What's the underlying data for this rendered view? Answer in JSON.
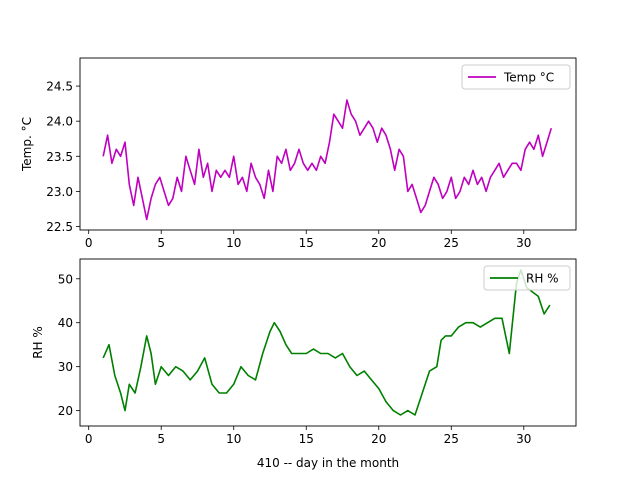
{
  "chart_data": [
    {
      "type": "line",
      "ylabel": "Temp. °C",
      "xlim": [
        -0.6,
        33.6
      ],
      "ylim": [
        22.45,
        24.9
      ],
      "xticks": [
        0,
        5,
        10,
        15,
        20,
        25,
        30
      ],
      "yticks": [
        22.5,
        23.0,
        23.5,
        24.0,
        24.5
      ],
      "ytick_labels": [
        "22.5",
        "23.0",
        "23.5",
        "24.0",
        "24.5"
      ],
      "legend_position": "top-right",
      "series": [
        {
          "name": "Temp °C",
          "color": "#bf00bf",
          "x": [
            1.0,
            1.3,
            1.6,
            1.9,
            2.2,
            2.5,
            2.8,
            3.1,
            3.4,
            3.7,
            4.0,
            4.3,
            4.6,
            4.9,
            5.2,
            5.5,
            5.8,
            6.1,
            6.4,
            6.7,
            7.0,
            7.3,
            7.6,
            7.9,
            8.2,
            8.5,
            8.8,
            9.1,
            9.4,
            9.7,
            10.0,
            10.3,
            10.6,
            10.9,
            11.2,
            11.5,
            11.8,
            12.1,
            12.4,
            12.7,
            13.0,
            13.3,
            13.6,
            13.9,
            14.2,
            14.5,
            14.8,
            15.1,
            15.4,
            15.7,
            16.0,
            16.3,
            16.6,
            16.9,
            17.2,
            17.5,
            17.8,
            18.1,
            18.4,
            18.7,
            19.0,
            19.3,
            19.6,
            19.9,
            20.2,
            20.5,
            20.8,
            21.1,
            21.4,
            21.7,
            22.0,
            22.3,
            22.6,
            22.9,
            23.2,
            23.5,
            23.8,
            24.1,
            24.4,
            24.7,
            25.0,
            25.3,
            25.6,
            25.9,
            26.2,
            26.5,
            26.8,
            27.1,
            27.4,
            27.7,
            28.0,
            28.3,
            28.6,
            28.9,
            29.2,
            29.5,
            29.8,
            30.1,
            30.4,
            30.7,
            31.0,
            31.3,
            31.6,
            31.9
          ],
          "y": [
            23.5,
            23.8,
            23.4,
            23.6,
            23.5,
            23.7,
            23.1,
            22.8,
            23.2,
            22.9,
            22.6,
            22.9,
            23.1,
            23.2,
            23.0,
            22.8,
            22.9,
            23.2,
            23.0,
            23.5,
            23.3,
            23.1,
            23.6,
            23.2,
            23.4,
            23.0,
            23.3,
            23.2,
            23.3,
            23.2,
            23.5,
            23.1,
            23.2,
            23.0,
            23.4,
            23.2,
            23.1,
            22.9,
            23.3,
            23.0,
            23.5,
            23.4,
            23.6,
            23.3,
            23.4,
            23.6,
            23.4,
            23.3,
            23.4,
            23.3,
            23.5,
            23.4,
            23.7,
            24.1,
            24.0,
            23.9,
            24.3,
            24.1,
            24.0,
            23.8,
            23.9,
            24.0,
            23.9,
            23.7,
            23.9,
            23.8,
            23.6,
            23.3,
            23.6,
            23.5,
            23.0,
            23.1,
            22.9,
            22.7,
            22.8,
            23.0,
            23.2,
            23.1,
            22.9,
            23.0,
            23.2,
            22.9,
            23.0,
            23.2,
            23.1,
            23.3,
            23.1,
            23.2,
            23.0,
            23.2,
            23.3,
            23.4,
            23.2,
            23.3,
            23.4,
            23.4,
            23.3,
            23.6,
            23.7,
            23.6,
            23.8,
            23.5,
            23.7,
            23.9
          ]
        }
      ]
    },
    {
      "type": "line",
      "xlabel": "410 -- day in the month",
      "ylabel": "RH %",
      "xlim": [
        -0.6,
        33.6
      ],
      "ylim": [
        16.5,
        54.5
      ],
      "xticks": [
        0,
        5,
        10,
        15,
        20,
        25,
        30
      ],
      "yticks": [
        20,
        30,
        40,
        50
      ],
      "legend_position": "top-right",
      "series": [
        {
          "name": "RH %",
          "color": "#008000",
          "x": [
            1.0,
            1.4,
            1.8,
            2.2,
            2.5,
            2.8,
            3.2,
            3.6,
            4.0,
            4.3,
            4.6,
            5.0,
            5.5,
            6.0,
            6.5,
            7.0,
            7.5,
            8.0,
            8.5,
            9.0,
            9.5,
            10.0,
            10.5,
            11.0,
            11.5,
            12.0,
            12.5,
            12.8,
            13.2,
            13.6,
            14.0,
            14.5,
            15.0,
            15.5,
            16.0,
            16.5,
            17.0,
            17.5,
            18.0,
            18.5,
            19.0,
            19.5,
            20.0,
            20.5,
            21.0,
            21.5,
            22.0,
            22.5,
            23.0,
            23.5,
            24.0,
            24.3,
            24.6,
            25.0,
            25.5,
            26.0,
            26.5,
            27.0,
            27.5,
            28.0,
            28.5,
            29.0,
            29.5,
            29.8,
            30.2,
            30.6,
            31.0,
            31.4,
            31.8
          ],
          "y": [
            32,
            35,
            28,
            24,
            20,
            26,
            24,
            30,
            37,
            33,
            26,
            30,
            28,
            30,
            29,
            27,
            29,
            32,
            26,
            24,
            24,
            26,
            30,
            28,
            27,
            33,
            38,
            40,
            38,
            35,
            33,
            33,
            33,
            34,
            33,
            33,
            32,
            33,
            30,
            28,
            29,
            27,
            25,
            22,
            20,
            19,
            20,
            19,
            24,
            29,
            30,
            36,
            37,
            37,
            39,
            40,
            40,
            39,
            40,
            41,
            41,
            33,
            49,
            52,
            48,
            47,
            46,
            42,
            44
          ]
        }
      ]
    }
  ]
}
